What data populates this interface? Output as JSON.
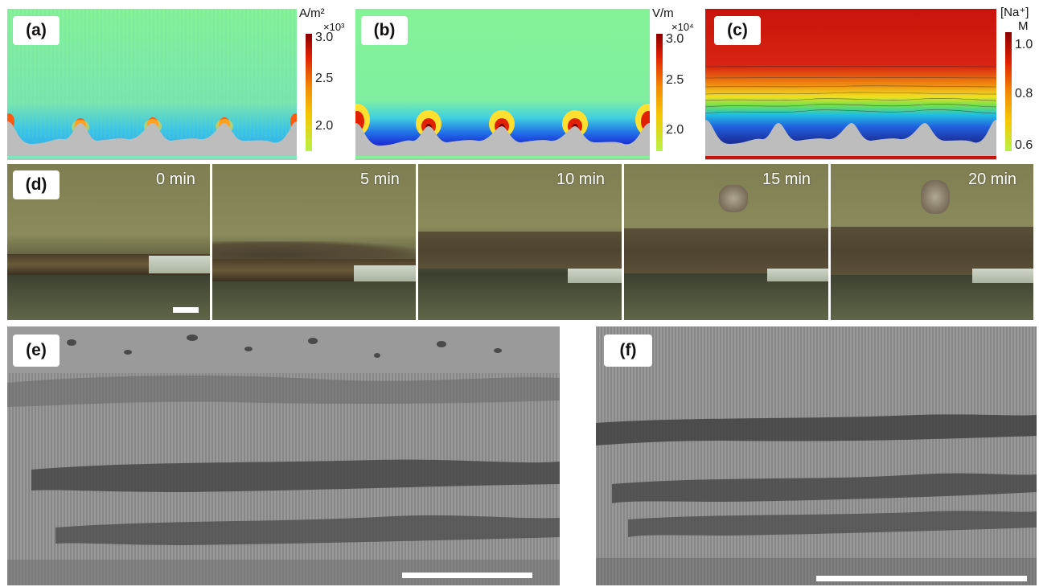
{
  "panels": {
    "a": {
      "label": "(a)",
      "unit": "A/m²",
      "exponent": "×10³",
      "ticks": [
        "3.0",
        "2.5",
        "2.0"
      ]
    },
    "b": {
      "label": "(b)",
      "unit": "V/m",
      "exponent": "×10⁴",
      "ticks": [
        "3.0",
        "2.5",
        "2.0"
      ]
    },
    "c": {
      "label": "(c)",
      "unit": "[Na⁺]",
      "unit2": "M",
      "ticks": [
        "1.0",
        "0.8",
        "0.6"
      ]
    },
    "d": {
      "label": "(d)",
      "times": [
        "0 min",
        "5 min",
        "10 min",
        "15 min",
        "20 min"
      ]
    },
    "e": {
      "label": "(e)"
    },
    "f": {
      "label": "(f)"
    }
  },
  "colors": {
    "field_background": "#84f296",
    "substrate": "#bdbdbd",
    "colorbar_top": "#8b0000",
    "colorbar_mid": "#f08a00",
    "colorbar_bottom": "#b7f248",
    "concentration_top": "#c8140c",
    "concentration_low": "#1c2f9a",
    "photo_background": "#7c7c50",
    "sem_gray": "#8d8d8d"
  }
}
